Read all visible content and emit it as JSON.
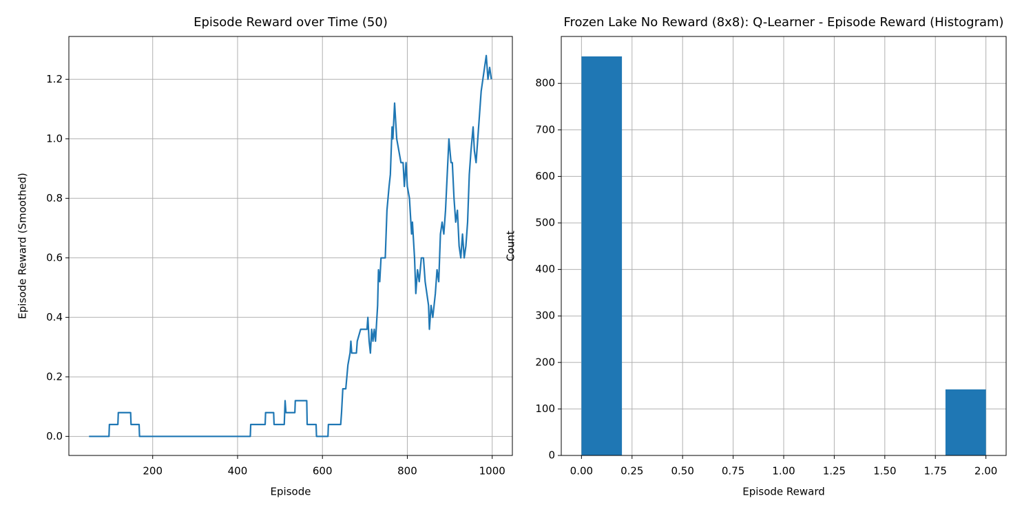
{
  "chart_data": [
    {
      "type": "line",
      "title": "Episode Reward over Time (50)",
      "xlabel": "Episode",
      "ylabel": "Episode Reward (Smoothed)",
      "color": "#1f77b4",
      "grid": true,
      "xlim": [
        2.5,
        1047.5
      ],
      "ylim": [
        -0.064,
        1.344
      ],
      "xticks": [
        200,
        400,
        600,
        800,
        1000
      ],
      "yticks": [
        {
          "value": 0,
          "label": "0.0"
        },
        0.2,
        0.4,
        0.6,
        0.8,
        {
          "value": 1,
          "label": "1.0"
        },
        1.2
      ],
      "x": [
        50,
        97,
        98,
        118,
        119,
        148,
        149,
        168,
        169,
        430,
        431,
        465,
        466,
        485,
        486,
        510,
        512,
        514,
        535,
        536,
        563,
        564,
        585,
        586,
        613,
        614,
        643,
        645,
        648,
        655,
        660,
        665,
        667,
        669,
        680,
        682,
        690,
        705,
        707,
        710,
        713,
        716,
        719,
        722,
        725,
        730,
        732,
        735,
        738,
        748,
        752,
        757,
        760,
        764,
        766,
        770,
        775,
        780,
        785,
        790,
        793,
        797,
        800,
        805,
        810,
        812,
        817,
        820,
        824,
        828,
        833,
        838,
        842,
        846,
        850,
        852,
        856,
        860,
        866,
        870,
        874,
        878,
        882,
        886,
        890,
        894,
        898,
        903,
        906,
        910,
        914,
        918,
        922,
        926,
        930,
        934,
        938,
        942,
        946,
        950,
        955,
        958,
        962,
        966,
        970,
        974,
        978,
        982,
        986,
        990,
        994,
        998
      ],
      "values": [
        0,
        0,
        0.04,
        0.04,
        0.08,
        0.08,
        0.04,
        0.04,
        0,
        0,
        0.04,
        0.04,
        0.08,
        0.08,
        0.04,
        0.04,
        0.12,
        0.08,
        0.08,
        0.12,
        0.12,
        0.04,
        0.04,
        0,
        0,
        0.04,
        0.04,
        0.08,
        0.16,
        0.16,
        0.24,
        0.28,
        0.32,
        0.28,
        0.28,
        0.32,
        0.36,
        0.36,
        0.4,
        0.32,
        0.28,
        0.36,
        0.32,
        0.36,
        0.32,
        0.44,
        0.56,
        0.52,
        0.6,
        0.6,
        0.76,
        0.84,
        0.88,
        1.04,
        1,
        1.12,
        1,
        0.96,
        0.92,
        0.92,
        0.84,
        0.92,
        0.84,
        0.8,
        0.68,
        0.72,
        0.6,
        0.48,
        0.56,
        0.52,
        0.6,
        0.6,
        0.52,
        0.48,
        0.44,
        0.36,
        0.44,
        0.4,
        0.48,
        0.56,
        0.52,
        0.68,
        0.72,
        0.68,
        0.76,
        0.88,
        1,
        0.92,
        0.92,
        0.8,
        0.72,
        0.76,
        0.64,
        0.6,
        0.68,
        0.6,
        0.64,
        0.72,
        0.88,
        0.96,
        1.04,
        0.96,
        0.92,
        1,
        1.08,
        1.16,
        1.2,
        1.24,
        1.28,
        1.2,
        1.24,
        1.2
      ]
    },
    {
      "type": "histogram",
      "title": "Frozen Lake No Reward (8x8): Q-Learner - Episode Reward (Histogram)",
      "xlabel": "Episode Reward",
      "ylabel": "Count",
      "color": "#1f77b4",
      "grid": true,
      "xlim": [
        -0.1,
        2.1
      ],
      "ylim": [
        0,
        900.9
      ],
      "xticks": [
        {
          "value": 0,
          "label": "0.00"
        },
        0.25,
        {
          "value": 0.5,
          "label": "0.50"
        },
        0.75,
        {
          "value": 1,
          "label": "1.00"
        },
        1.25,
        {
          "value": 1.5,
          "label": "1.50"
        },
        1.75,
        {
          "value": 2,
          "label": "2.00"
        }
      ],
      "yticks": [
        0,
        100,
        200,
        300,
        400,
        500,
        600,
        700,
        800
      ],
      "bins": [
        0,
        0.2,
        0.4,
        0.6,
        0.8,
        1,
        1.2,
        1.4,
        1.6,
        1.8,
        2
      ],
      "values": [
        858,
        0,
        0,
        0,
        0,
        0,
        0,
        0,
        0,
        142
      ]
    }
  ]
}
